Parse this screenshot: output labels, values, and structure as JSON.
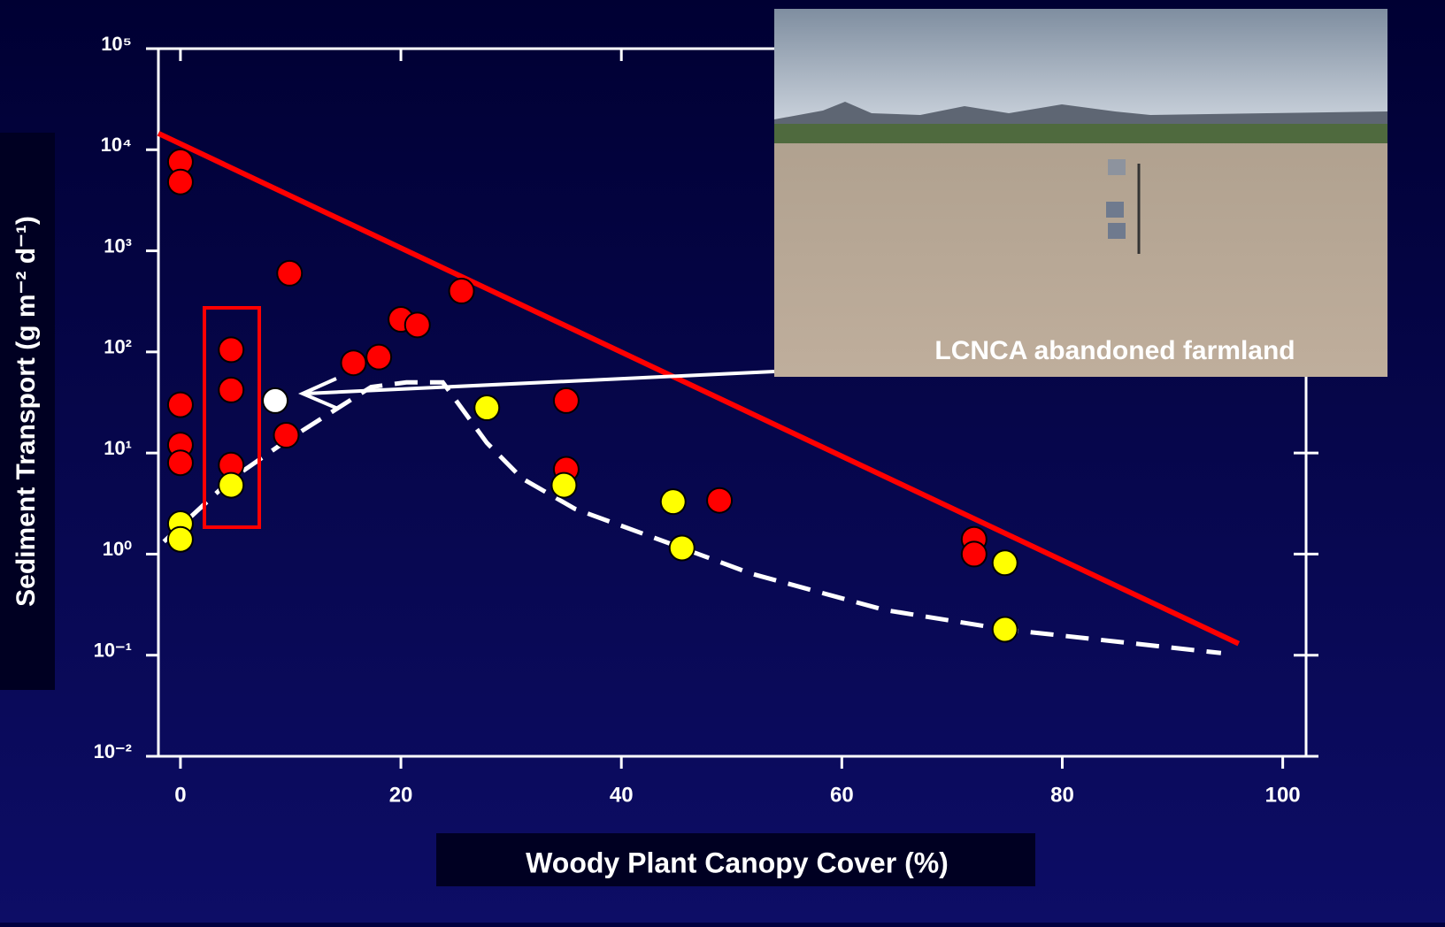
{
  "chart_data": {
    "type": "scatter",
    "y_label": "Sediment Transport (g m⁻² d⁻¹)",
    "x_label": "Woody Plant Canopy Cover (%)",
    "annotation": "LCNCA abandoned farmland",
    "y_log": true,
    "xlim": [
      -2,
      103
    ],
    "ylim": [
      0.01,
      100000
    ],
    "xticks": [
      0,
      20,
      40,
      60,
      80,
      100
    ],
    "yticks": [
      {
        "value": 100000,
        "label": "10⁵"
      },
      {
        "value": 10000,
        "label": "10⁴"
      },
      {
        "value": 1000,
        "label": "10³"
      },
      {
        "value": 100,
        "label": "10²"
      },
      {
        "value": 10,
        "label": "10¹"
      },
      {
        "value": 1,
        "label": "10⁰"
      },
      {
        "value": 0.1,
        "label": "10⁻¹"
      },
      {
        "value": 0.01,
        "label": "10⁻²"
      }
    ],
    "series": [
      {
        "color": "#ff0000",
        "mode": "line",
        "dash": false,
        "x": [
          -2,
          96
        ],
        "values": [
          14500,
          0.13
        ]
      },
      {
        "color": "#ffffff",
        "mode": "line",
        "dash": true,
        "x": [
          -1.5,
          4.7,
          9.7,
          17.3,
          20.5,
          23.8,
          27.8,
          31,
          35.8,
          44.6,
          51.8,
          63.9,
          74.8,
          94.4
        ],
        "values": [
          1.33,
          5.6,
          13.4,
          45,
          50,
          50,
          12.6,
          5.6,
          2.8,
          1.25,
          0.64,
          0.28,
          0.18,
          0.105
        ]
      },
      {
        "color": "#ff0000",
        "mode": "markers",
        "x": [
          0,
          0,
          9.9,
          0,
          0,
          0,
          4.6,
          4.6,
          4.6,
          9.6,
          15.7,
          18,
          20,
          21.5,
          25.5,
          35,
          35,
          48.9,
          72,
          72
        ],
        "values": [
          7600,
          4800,
          600,
          30,
          12,
          8,
          105,
          42,
          7.6,
          15,
          78,
          89,
          210,
          185,
          400,
          33,
          6.9,
          3.4,
          1.4,
          1.0
        ]
      },
      {
        "color": "#ffff00",
        "mode": "markers",
        "x": [
          0,
          0,
          4.6,
          27.8,
          34.8,
          44.7,
          45.5,
          74.8,
          74.8
        ],
        "values": [
          2.0,
          1.4,
          4.8,
          28,
          4.8,
          3.3,
          1.15,
          0.82,
          0.18
        ]
      },
      {
        "color": "#ffffff",
        "mode": "markers",
        "x": [
          8.6
        ],
        "values": [
          33
        ]
      }
    ]
  }
}
